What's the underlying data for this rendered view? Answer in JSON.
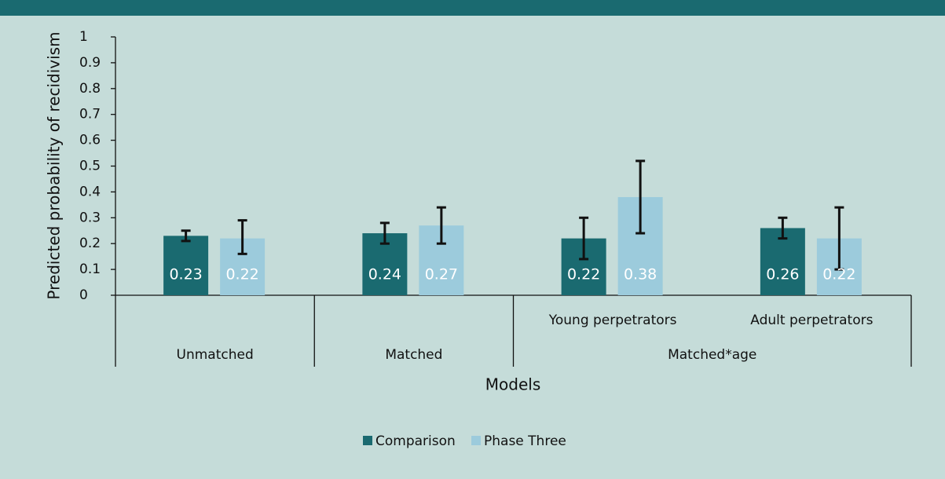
{
  "chart_data": {
    "type": "bar",
    "x_label": "Models",
    "y_label": "Predicted probability of recidivism",
    "categories": [
      null,
      null,
      "Young perpetrators",
      "Adult perpetrators"
    ],
    "groups": [
      {
        "label": "Unmatched",
        "size": 1
      },
      {
        "label": "Matched",
        "size": 1
      },
      {
        "label": "Matched*age",
        "size": 2
      }
    ],
    "series": [
      {
        "name": "Comparison",
        "color": "#1a6a70",
        "values": [
          0.23,
          0.24,
          0.22,
          0.26
        ],
        "lower": [
          0.21,
          0.2,
          0.14,
          0.22
        ],
        "upper": [
          0.25,
          0.28,
          0.3,
          0.3
        ]
      },
      {
        "name": "Phase Three",
        "color": "#9ccbdc",
        "values": [
          0.22,
          0.27,
          0.38,
          0.22
        ],
        "lower": [
          0.16,
          0.2,
          0.24,
          0.1
        ],
        "upper": [
          0.29,
          0.34,
          0.52,
          0.34
        ]
      }
    ],
    "ylim": [
      0,
      1
    ],
    "yticks": [
      0,
      0.1,
      0.2,
      0.3,
      0.4,
      0.5,
      0.6,
      0.7,
      0.8,
      0.9,
      1
    ],
    "legend": "bottom"
  }
}
